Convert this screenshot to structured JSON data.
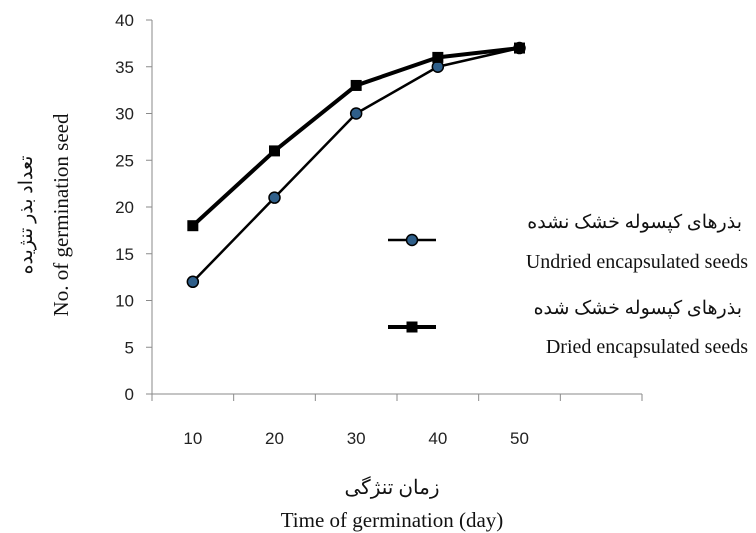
{
  "chart_data": {
    "type": "line",
    "x": [
      10,
      20,
      30,
      40,
      50
    ],
    "x_ticks": [
      10,
      20,
      30,
      40,
      50
    ],
    "xlim": [
      0,
      60
    ],
    "ylim": [
      0,
      40
    ],
    "y_ticks": [
      0,
      5,
      10,
      15,
      20,
      25,
      30,
      35,
      40
    ],
    "grid": false,
    "legend_placement": "right",
    "xlabel": "Time of germination (day)",
    "xlabel_fa": "زمان تنژگی",
    "ylabel": "No. of germination seed",
    "ylabel_fa": "تعداد بذر تنژیده",
    "series": [
      {
        "name": "Undried encapsulated seeds",
        "name_fa": "بذرهای کپسوله خشک نشده",
        "marker": "circle",
        "color": "#000000",
        "marker_fill": "#2f5f8a",
        "values": [
          12,
          21,
          30,
          35,
          37
        ]
      },
      {
        "name": "Dried encapsulated seeds",
        "name_fa": "بذرهای کپسوله خشک شده",
        "marker": "square",
        "color": "#000000",
        "marker_fill": "#000000",
        "values": [
          18,
          26,
          33,
          36,
          37
        ]
      }
    ]
  }
}
